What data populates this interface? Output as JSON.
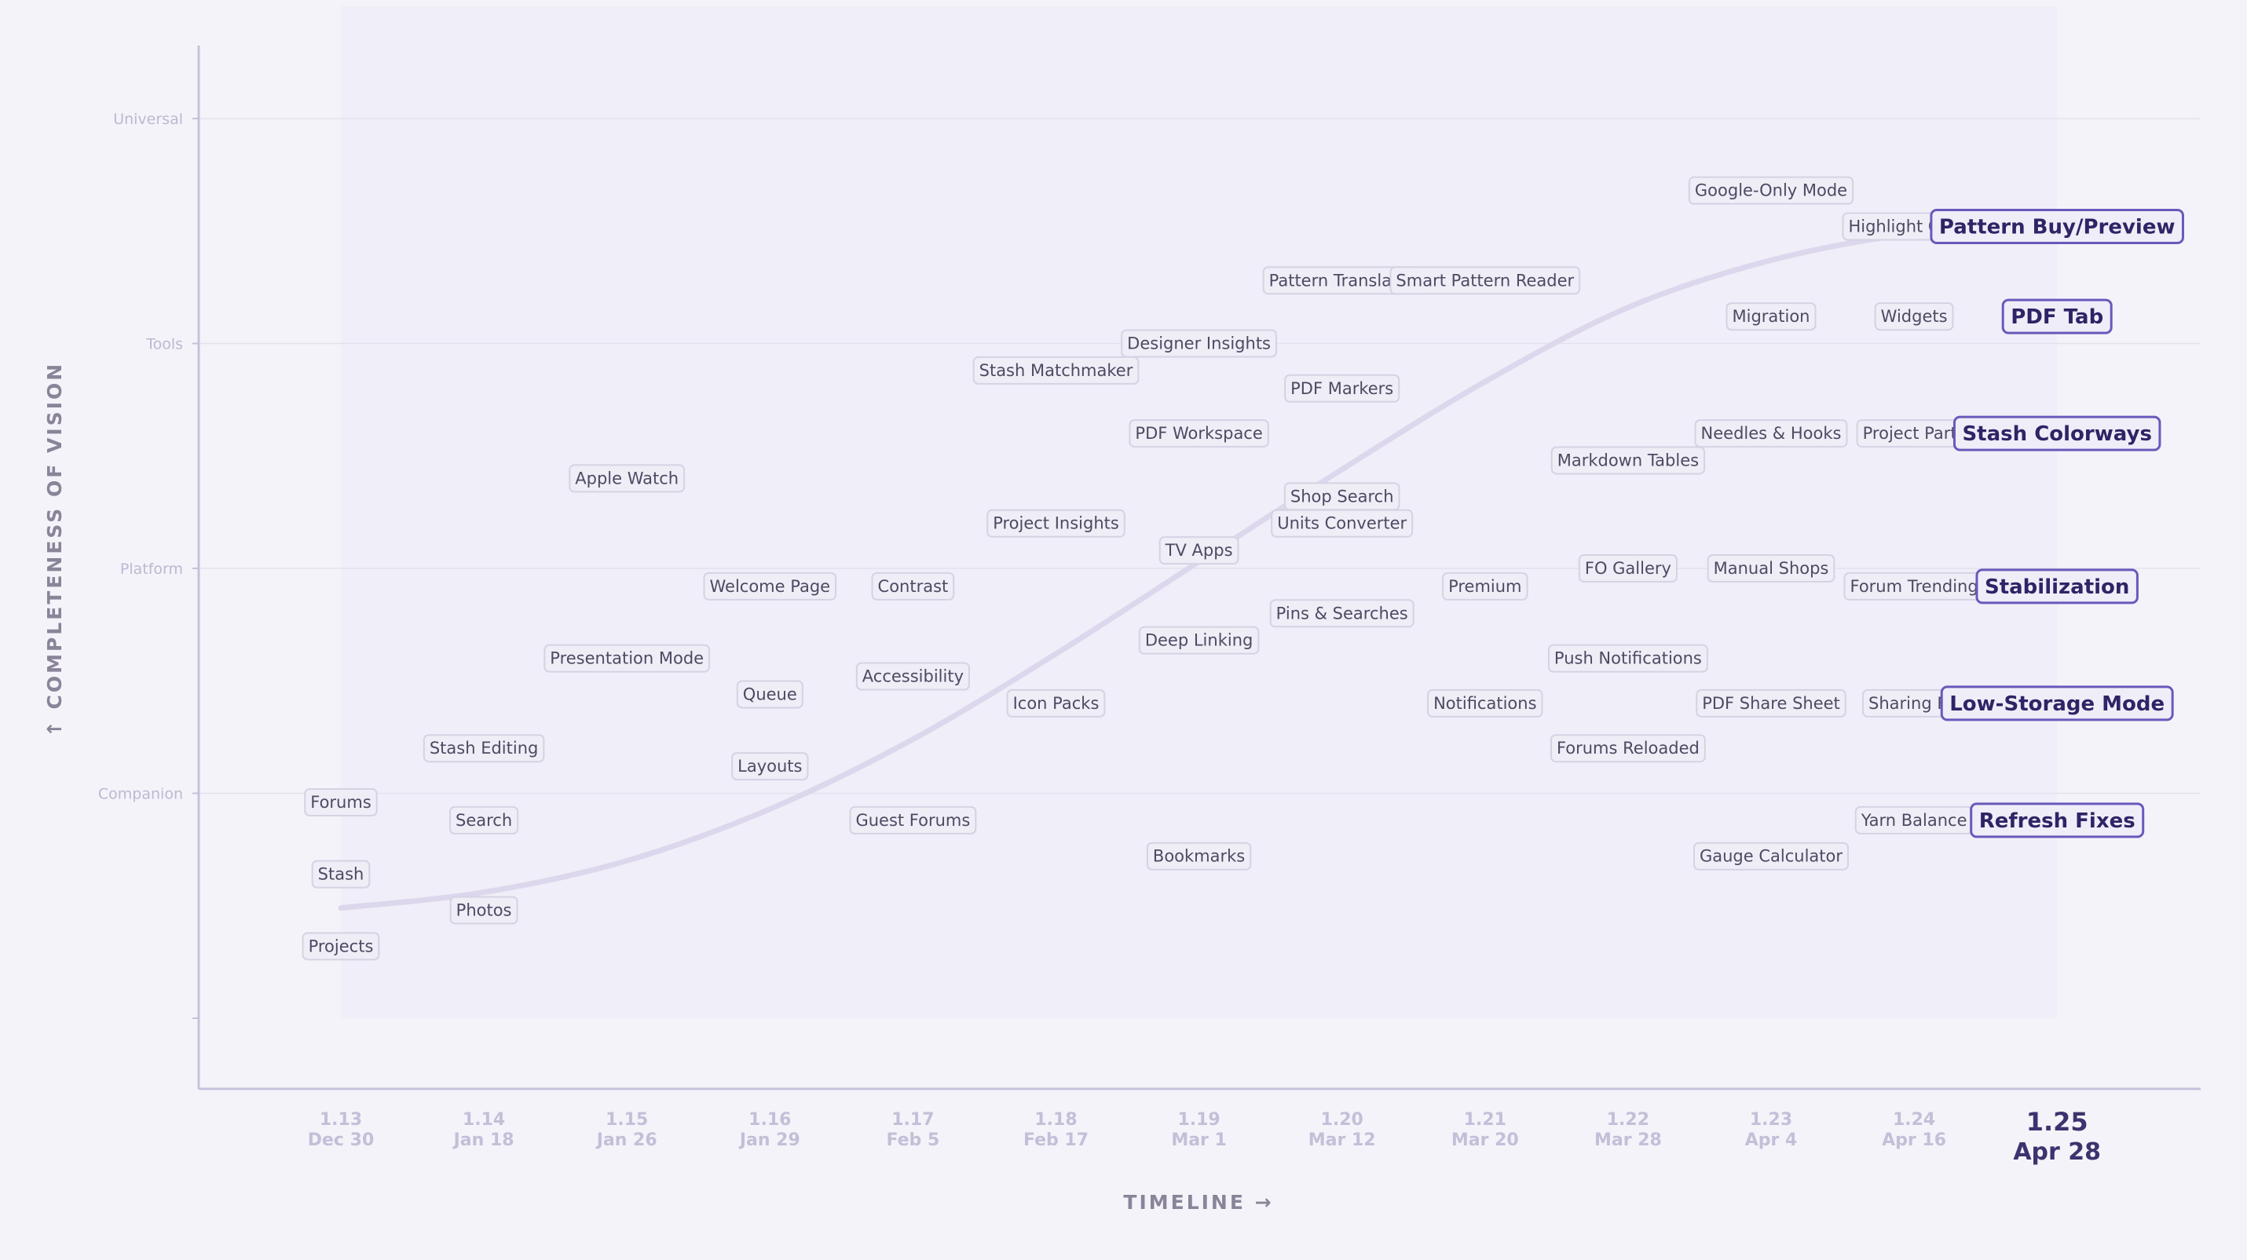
{
  "colors": {
    "background": "#f4f3f9",
    "axis": "#c6c1dc",
    "grid": "#e4e1ee",
    "curve": "#dcd7ec",
    "label_fill": "#efedf6",
    "label_border": "#d6d2e3",
    "highlight_fill": "#efedf8",
    "highlight_border": "#6a58bb",
    "highlight_text": "#2e2466",
    "current_version_text": "#3d336e"
  },
  "chart_data": {
    "type": "scatter",
    "title": "",
    "xlabel": "TIMELINE  →",
    "ylabel": "↑  COMPLETENESS  OF  VISION",
    "x_ticks": [
      {
        "version": "1.13",
        "date": "Dec 30"
      },
      {
        "version": "1.14",
        "date": "Jan 18"
      },
      {
        "version": "1.15",
        "date": "Jan 26"
      },
      {
        "version": "1.16",
        "date": "Jan 29"
      },
      {
        "version": "1.17",
        "date": "Feb 5"
      },
      {
        "version": "1.18",
        "date": "Feb 17"
      },
      {
        "version": "1.19",
        "date": "Mar 1"
      },
      {
        "version": "1.20",
        "date": "Mar 12"
      },
      {
        "version": "1.21",
        "date": "Mar 20"
      },
      {
        "version": "1.22",
        "date": "Mar 28"
      },
      {
        "version": "1.23",
        "date": "Apr 4"
      },
      {
        "version": "1.24",
        "date": "Apr 16"
      },
      {
        "version": "1.25",
        "date": "Apr 28",
        "current": true
      }
    ],
    "y_ticks": [
      {
        "label": "Companion",
        "value": 1
      },
      {
        "label": "Platform",
        "value": 2
      },
      {
        "label": "Tools",
        "value": 3
      },
      {
        "label": "Universal",
        "value": 4
      }
    ],
    "ylim": [
      0,
      4.5
    ],
    "grid": true,
    "points": [
      {
        "label": "Projects",
        "version": "1.13",
        "y": 0.32
      },
      {
        "label": "Stash",
        "version": "1.13",
        "y": 0.64
      },
      {
        "label": "Forums",
        "version": "1.13",
        "y": 0.96
      },
      {
        "label": "Photos",
        "version": "1.14",
        "y": 0.48
      },
      {
        "label": "Search",
        "version": "1.14",
        "y": 0.88
      },
      {
        "label": "Stash Editing",
        "version": "1.14",
        "y": 1.2
      },
      {
        "label": "Presentation Mode",
        "version": "1.15",
        "y": 1.6
      },
      {
        "label": "Apple Watch",
        "version": "1.15",
        "y": 2.4
      },
      {
        "label": "Layouts",
        "version": "1.16",
        "y": 1.12
      },
      {
        "label": "Queue",
        "version": "1.16",
        "y": 1.44
      },
      {
        "label": "Welcome Page",
        "version": "1.16",
        "y": 1.92
      },
      {
        "label": "Guest Forums",
        "version": "1.17",
        "y": 0.88
      },
      {
        "label": "Accessibility",
        "version": "1.17",
        "y": 1.52
      },
      {
        "label": "Contrast",
        "version": "1.17",
        "y": 1.92
      },
      {
        "label": "Icon Packs",
        "version": "1.18",
        "y": 1.4
      },
      {
        "label": "Project Insights",
        "version": "1.18",
        "y": 2.2
      },
      {
        "label": "Stash Matchmaker",
        "version": "1.18",
        "y": 2.88
      },
      {
        "label": "Bookmarks",
        "version": "1.19",
        "y": 0.72
      },
      {
        "label": "Deep Linking",
        "version": "1.19",
        "y": 1.68
      },
      {
        "label": "TV Apps",
        "version": "1.19",
        "y": 2.08
      },
      {
        "label": "PDF Workspace",
        "version": "1.19",
        "y": 2.6
      },
      {
        "label": "Designer Insights",
        "version": "1.19",
        "y": 3.0
      },
      {
        "label": "Pins & Searches",
        "version": "1.20",
        "y": 1.8
      },
      {
        "label": "Units Converter",
        "version": "1.20",
        "y": 2.2
      },
      {
        "label": "Shop Search",
        "version": "1.20",
        "y": 2.32
      },
      {
        "label": "PDF Markers",
        "version": "1.20",
        "y": 2.8
      },
      {
        "label": "Pattern Translator",
        "version": "1.20",
        "y": 3.28
      },
      {
        "label": "Notifications",
        "version": "1.21",
        "y": 1.4
      },
      {
        "label": "Premium",
        "version": "1.21",
        "y": 1.92
      },
      {
        "label": "Smart Pattern Reader",
        "version": "1.21",
        "y": 3.28
      },
      {
        "label": "Forums Reloaded",
        "version": "1.22",
        "y": 1.2
      },
      {
        "label": "Push Notifications",
        "version": "1.22",
        "y": 1.6
      },
      {
        "label": "FO Gallery",
        "version": "1.22",
        "y": 2.0
      },
      {
        "label": "Markdown Tables",
        "version": "1.22",
        "y": 2.48
      },
      {
        "label": "Gauge Calculator",
        "version": "1.23",
        "y": 0.72
      },
      {
        "label": "PDF Share Sheet",
        "version": "1.23",
        "y": 1.4
      },
      {
        "label": "Manual Shops",
        "version": "1.23",
        "y": 2.0
      },
      {
        "label": "Needles & Hooks",
        "version": "1.23",
        "y": 2.6
      },
      {
        "label": "Migration",
        "version": "1.23",
        "y": 3.12
      },
      {
        "label": "Google-Only Mode",
        "version": "1.23",
        "y": 3.68
      },
      {
        "label": "Yarn Balance",
        "version": "1.24",
        "y": 0.88
      },
      {
        "label": "Sharing Fix",
        "version": "1.24",
        "y": 1.4
      },
      {
        "label": "Forum Trending",
        "version": "1.24",
        "y": 1.92
      },
      {
        "label": "Project Parts",
        "version": "1.24",
        "y": 2.6
      },
      {
        "label": "Widgets",
        "version": "1.24",
        "y": 3.12
      },
      {
        "label": "Highlight Colors",
        "version": "1.24",
        "y": 3.52
      },
      {
        "label": "Refresh Fixes",
        "version": "1.25",
        "y": 0.88,
        "highlight": true
      },
      {
        "label": "Low-Storage Mode",
        "version": "1.25",
        "y": 1.4,
        "highlight": true
      },
      {
        "label": "Stabilization",
        "version": "1.25",
        "y": 1.92,
        "highlight": true
      },
      {
        "label": "Stash Colorways",
        "version": "1.25",
        "y": 2.6,
        "highlight": true
      },
      {
        "label": "PDF Tab",
        "version": "1.25",
        "y": 3.12,
        "highlight": true
      },
      {
        "label": "Pattern Buy/Preview",
        "version": "1.25",
        "y": 3.52,
        "highlight": true
      }
    ],
    "trend_curve": {
      "type": "s-curve",
      "points": [
        {
          "version": "1.13",
          "y": 0.49
        },
        {
          "version": "1.14",
          "y": 0.56
        },
        {
          "version": "1.15",
          "y": 0.7
        },
        {
          "version": "1.16",
          "y": 0.93
        },
        {
          "version": "1.17",
          "y": 1.24
        },
        {
          "version": "1.18",
          "y": 1.62
        },
        {
          "version": "1.19",
          "y": 2.03
        },
        {
          "version": "1.20",
          "y": 2.44
        },
        {
          "version": "1.21",
          "y": 2.83
        },
        {
          "version": "1.22",
          "y": 3.16
        },
        {
          "version": "1.23",
          "y": 3.37
        },
        {
          "version": "1.24",
          "y": 3.49
        },
        {
          "version": "1.25",
          "y": 3.54
        }
      ]
    }
  }
}
